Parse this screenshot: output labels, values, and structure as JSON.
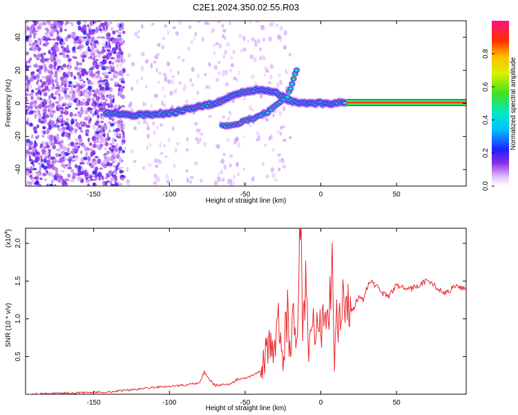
{
  "title": "C2E1.2024.350.02.55.R03",
  "colors": {
    "snr_line": "#e8242a",
    "axis": "#000000"
  },
  "spectrogram": {
    "chart_data": {
      "type": "heatmap",
      "xlabel": "Height of straight line (km)",
      "ylabel": "Frequency (Hz)",
      "xlim": [
        -195,
        96
      ],
      "ylim": [
        -50,
        50
      ],
      "x_ticks": [
        -150,
        -100,
        -50,
        0,
        50
      ],
      "y_ticks": [
        -40,
        -20,
        0,
        20,
        40
      ],
      "colorbar": {
        "label": "Normalized spectral amplitude",
        "range": [
          0.0,
          1.0
        ],
        "ticks": [
          "0.0",
          "0.2",
          "0.4",
          "0.6",
          "0.8"
        ],
        "colormap": "rainbow (white-violet-blue-cyan-green-yellow-red-magenta)"
      },
      "features": [
        {
          "name": "noise band",
          "x_range": [
            -195,
            -140
          ],
          "y_range": [
            -50,
            50
          ],
          "amplitude": 0.1
        },
        {
          "name": "main ridge",
          "points": [
            [
              -142,
              -6
            ],
            [
              -120,
              -7
            ],
            [
              -100,
              -6
            ],
            [
              -85,
              -3
            ],
            [
              -70,
              0
            ],
            [
              -55,
              6
            ],
            [
              -45,
              8
            ],
            [
              -35,
              8
            ],
            [
              -28,
              6
            ],
            [
              -22,
              2
            ],
            [
              -15,
              0
            ],
            [
              0,
              0
            ],
            [
              10,
              0
            ],
            [
              17,
              1
            ]
          ],
          "amplitude": 0.4
        },
        {
          "name": "lower branch",
          "points": [
            [
              -65,
              -14
            ],
            [
              -55,
              -12
            ],
            [
              -45,
              -9
            ],
            [
              -35,
              -5
            ],
            [
              -28,
              0
            ],
            [
              -22,
              4
            ],
            [
              -18,
              15
            ],
            [
              -15,
              22
            ]
          ],
          "amplitude": 0.3
        },
        {
          "name": "constant line",
          "points": [
            [
              17,
              0.5
            ],
            [
              96,
              0.5
            ]
          ],
          "amplitude": 0.95
        }
      ]
    }
  },
  "snr": {
    "chart_data": {
      "type": "line",
      "xlabel": "Height of straight line (km)",
      "ylabel": "SNR (10 * v/v)",
      "scale_note": "(x10",
      "scale_exp": "4",
      "xlim": [
        -195,
        96
      ],
      "ylim": [
        0,
        2.2
      ],
      "x_ticks": [
        -150,
        -100,
        -50,
        0,
        50
      ],
      "y_ticks": [
        "0.5",
        "1.0",
        "1.5",
        "2.0"
      ],
      "series": [
        {
          "x": [
            -195,
            -180,
            -160,
            -140,
            -130,
            -120,
            -110,
            -100,
            -90,
            -80,
            -77,
            -74,
            -70,
            -60,
            -55,
            -50,
            -45,
            -40,
            -37,
            -34,
            -31,
            -28,
            -25,
            -22,
            -20,
            -18,
            -16,
            -14,
            -13,
            -12,
            -10,
            -8,
            -6,
            -4,
            -2,
            0,
            2,
            4,
            6,
            8,
            9,
            10,
            12,
            14,
            16,
            18,
            20,
            22,
            24,
            26,
            28,
            30,
            33,
            36,
            40,
            45,
            50,
            55,
            60,
            65,
            70,
            75,
            80,
            85,
            88,
            92,
            96
          ],
          "y": [
            0.0,
            0.01,
            0.02,
            0.03,
            0.05,
            0.07,
            0.09,
            0.1,
            0.12,
            0.15,
            0.3,
            0.2,
            0.12,
            0.13,
            0.2,
            0.22,
            0.25,
            0.3,
            0.45,
            0.8,
            0.4,
            0.9,
            0.55,
            1.1,
            0.5,
            1.3,
            0.6,
            1.9,
            2.15,
            0.7,
            1.4,
            0.6,
            1.15,
            0.8,
            1.25,
            0.7,
            1.05,
            0.9,
            1.2,
            1.8,
            0.25,
            1.1,
            0.8,
            1.3,
            1.0,
            1.2,
            1.1,
            1.15,
            1.25,
            1.3,
            1.25,
            1.4,
            1.5,
            1.45,
            1.35,
            1.3,
            1.45,
            1.4,
            1.4,
            1.45,
            1.5,
            1.45,
            1.35,
            1.35,
            1.45,
            1.42,
            1.38
          ]
        }
      ]
    }
  }
}
